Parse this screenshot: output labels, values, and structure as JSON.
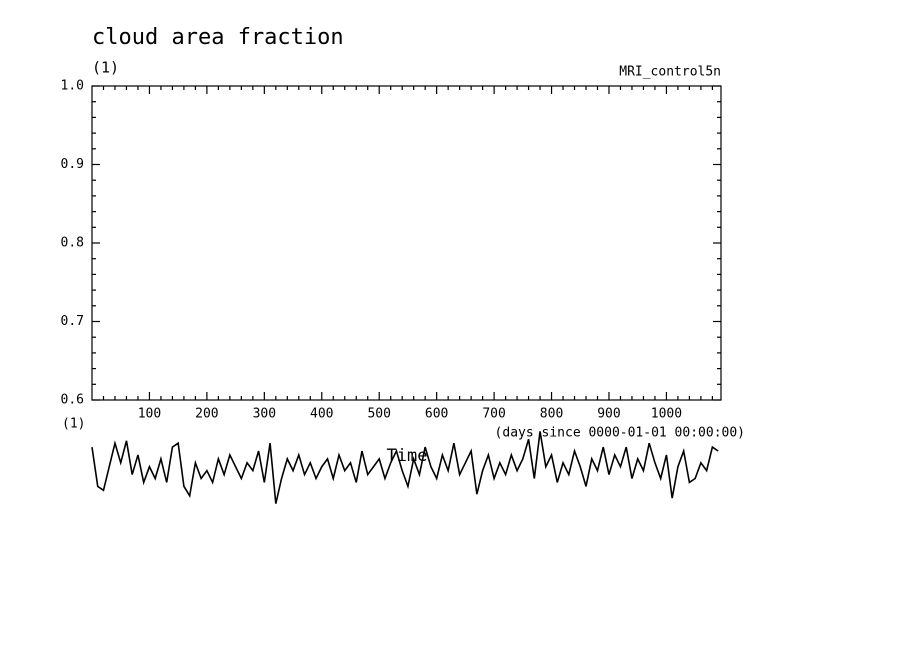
{
  "chart_data": {
    "type": "line",
    "title": "cloud area fraction",
    "y_unit": "(1)",
    "dataset": "MRI_control5n",
    "x_unit_left": "(1)",
    "x_unit": "(days since 0000-01-01 00:00:00)",
    "x_label": "Time",
    "xlim": [
      0,
      1095
    ],
    "ylim": [
      0.6,
      1.0
    ],
    "xticks": [
      100,
      200,
      300,
      400,
      500,
      600,
      700,
      800,
      900,
      1000
    ],
    "yticks": [
      0.6,
      0.7,
      0.8,
      0.9,
      {
        "value": 1,
        "label": "1.0"
      }
    ],
    "x_minor_ticks": [
      20,
      40,
      60,
      80,
      120,
      140,
      160,
      180,
      220,
      240,
      260,
      280,
      320,
      340,
      360,
      380,
      420,
      440,
      460,
      480,
      520,
      540,
      560,
      580,
      620,
      640,
      660,
      680,
      720,
      740,
      760,
      780,
      820,
      840,
      860,
      880,
      920,
      940,
      960,
      980,
      1020,
      1040,
      1060,
      1080
    ],
    "y_minor_ticks": [
      0.62,
      0.64,
      0.66,
      0.68,
      0.72,
      0.74,
      0.76,
      0.78,
      0.82,
      0.84,
      0.86,
      0.88,
      0.92,
      0.94,
      0.96,
      0.98
    ],
    "series": [
      {
        "color": "#000000",
        "x": [
          0,
          10,
          20,
          30,
          40,
          50,
          60,
          70,
          80,
          90,
          100,
          110,
          120,
          130,
          140,
          150,
          160,
          170,
          180,
          190,
          200,
          210,
          220,
          230,
          240,
          250,
          260,
          270,
          280,
          290,
          300,
          310,
          320,
          330,
          340,
          350,
          360,
          370,
          380,
          390,
          400,
          410,
          420,
          430,
          440,
          450,
          460,
          470,
          480,
          490,
          500,
          510,
          520,
          530,
          540,
          550,
          560,
          570,
          580,
          590,
          600,
          610,
          620,
          630,
          640,
          650,
          660,
          670,
          680,
          690,
          700,
          710,
          720,
          730,
          740,
          750,
          760,
          770,
          780,
          790,
          800,
          810,
          820,
          830,
          840,
          850,
          860,
          870,
          880,
          890,
          900,
          910,
          920,
          930,
          940,
          950,
          960,
          970,
          980,
          990,
          1000,
          1010,
          1020,
          1030,
          1040,
          1050,
          1060,
          1070,
          1080,
          1090
        ],
        "values": [
          0.54,
          0.49,
          0.485,
          0.515,
          0.545,
          0.52,
          0.548,
          0.505,
          0.53,
          0.495,
          0.515,
          0.5,
          0.525,
          0.495,
          0.54,
          0.545,
          0.49,
          0.478,
          0.52,
          0.5,
          0.51,
          0.495,
          0.525,
          0.505,
          0.53,
          0.515,
          0.5,
          0.52,
          0.51,
          0.535,
          0.495,
          0.545,
          0.468,
          0.5,
          0.525,
          0.51,
          0.53,
          0.505,
          0.52,
          0.5,
          0.515,
          0.525,
          0.5,
          0.53,
          0.51,
          0.52,
          0.495,
          0.535,
          0.505,
          0.515,
          0.525,
          0.5,
          0.52,
          0.535,
          0.51,
          0.49,
          0.525,
          0.505,
          0.54,
          0.515,
          0.5,
          0.53,
          0.51,
          0.545,
          0.505,
          0.52,
          0.535,
          0.48,
          0.51,
          0.53,
          0.5,
          0.52,
          0.505,
          0.53,
          0.51,
          0.525,
          0.55,
          0.5,
          0.56,
          0.515,
          0.53,
          0.495,
          0.52,
          0.505,
          0.535,
          0.515,
          0.49,
          0.525,
          0.51,
          0.54,
          0.505,
          0.53,
          0.515,
          0.54,
          0.5,
          0.525,
          0.51,
          0.545,
          0.52,
          0.5,
          0.53,
          0.475,
          0.515,
          0.535,
          0.495,
          0.5,
          0.52,
          0.51,
          0.54,
          0.535
        ]
      }
    ]
  }
}
